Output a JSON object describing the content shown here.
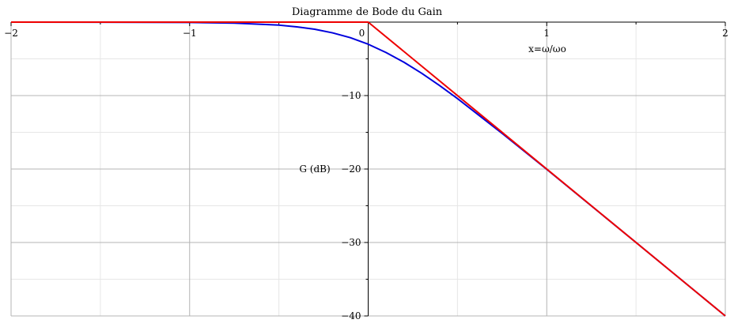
{
  "chart_data": {
    "type": "line",
    "title": "Diagramme de Bode du Gain",
    "xlabel": "x=ω/ωo",
    "ylabel": "G (dB)",
    "xlim": [
      -2,
      2
    ],
    "ylim": [
      -40,
      0
    ],
    "x_scale": "linear",
    "x_ticks": [
      -2,
      -1,
      0,
      1,
      2
    ],
    "x_tick_labels": [
      "−2",
      "−1",
      "0",
      "1",
      "2"
    ],
    "y_ticks": [
      -10,
      -20,
      -30,
      -40
    ],
    "y_tick_labels": [
      "−10",
      "−20",
      "−30",
      "−40"
    ],
    "grid": true,
    "series": [
      {
        "color": "#0000dd",
        "x": [
          -2,
          -1.5,
          -1,
          -0.75,
          -0.5,
          -0.4,
          -0.3,
          -0.2,
          -0.1,
          0,
          0.1,
          0.2,
          0.3,
          0.4,
          0.5,
          0.75,
          1,
          1.5,
          2
        ],
        "y": [
          0,
          -0.01,
          -0.04,
          -0.14,
          -0.41,
          -0.64,
          -0.97,
          -1.46,
          -2.12,
          -3.01,
          -4.14,
          -5.46,
          -6.97,
          -8.64,
          -10.41,
          -15.14,
          -20.04,
          -30.0,
          -40.0
        ]
      },
      {
        "color": "#ee0000",
        "x": [
          -2,
          0,
          2
        ],
        "y": [
          0,
          0,
          -40
        ]
      }
    ]
  }
}
